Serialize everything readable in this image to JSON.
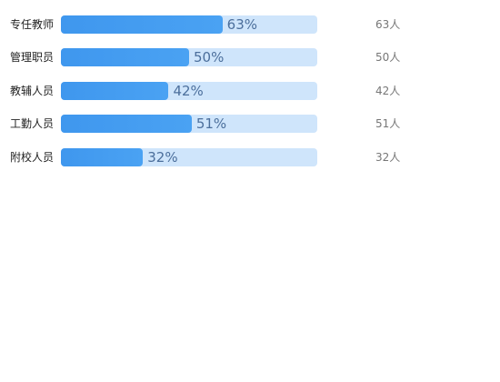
{
  "chart_data": {
    "type": "bar",
    "orientation": "horizontal",
    "categories": [
      "专任教师",
      "管理职员",
      "教辅人员",
      "工勤人员",
      "附校人员"
    ],
    "values": [
      63,
      50,
      42,
      51,
      32
    ],
    "value_labels": [
      "63%",
      "50%",
      "42%",
      "51%",
      "32%"
    ],
    "count_labels": [
      "63人",
      "50人",
      "42人",
      "51人",
      "32人"
    ],
    "xlim": [
      0,
      100
    ],
    "grid": false,
    "colors": {
      "fill": "#4299ef",
      "track": "#cfe5fb",
      "value_text": "#4c6f9c",
      "count_text": "#777777",
      "label_text": "#222222"
    }
  }
}
